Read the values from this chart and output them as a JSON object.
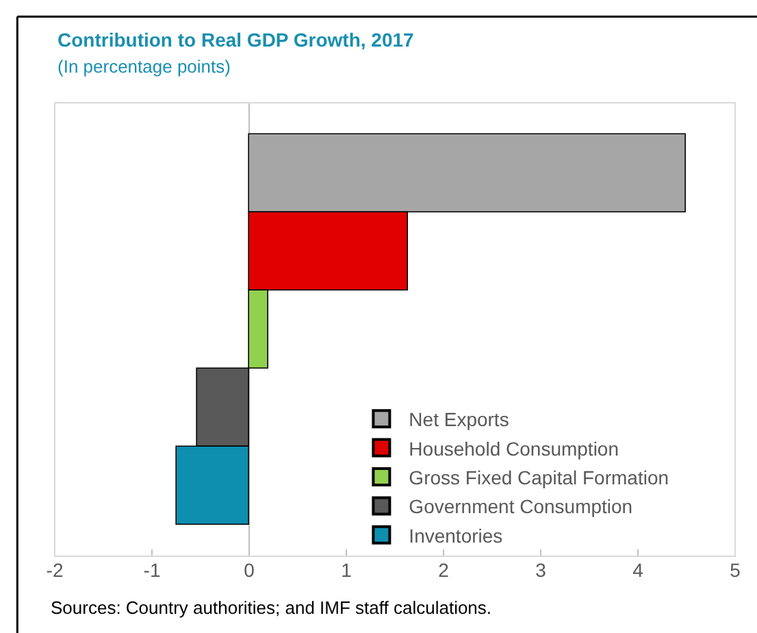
{
  "chart_data": {
    "type": "bar",
    "orientation": "horizontal",
    "title": "Contribution to Real GDP Growth, 2017",
    "subtitle": "(In percentage points)",
    "categories": [
      null,
      null,
      null,
      null,
      null
    ],
    "series": [
      {
        "name": "Net Exports",
        "color": "#a6a6a6",
        "values": [
          4.49,
          null,
          null,
          null,
          null
        ]
      },
      {
        "name": "Household Consumption",
        "color": "#e00000",
        "values": [
          null,
          1.63,
          null,
          null,
          null
        ]
      },
      {
        "name": "Gross Fixed Capital Formation",
        "color": "#92d050",
        "values": [
          null,
          null,
          0.2,
          null,
          null
        ]
      },
      {
        "name": "Government Consumption",
        "color": "#595959",
        "values": [
          null,
          null,
          null,
          -0.54,
          null
        ]
      },
      {
        "name": "Inventories",
        "color": "#0e8fb0",
        "values": [
          null,
          null,
          null,
          null,
          -0.74
        ]
      }
    ],
    "xlim": [
      -2,
      5
    ],
    "xticks": [
      -2,
      -1,
      0,
      1,
      2,
      3,
      4,
      5
    ],
    "grid": false,
    "ref_lines": [
      {
        "axis": "x",
        "value": 0,
        "color": "#bfbfbf"
      }
    ],
    "legend": "bottom right",
    "tick_labels": "x",
    "annotations": [
      "Sources: Country authorities; and IMF staff calculations."
    ]
  }
}
